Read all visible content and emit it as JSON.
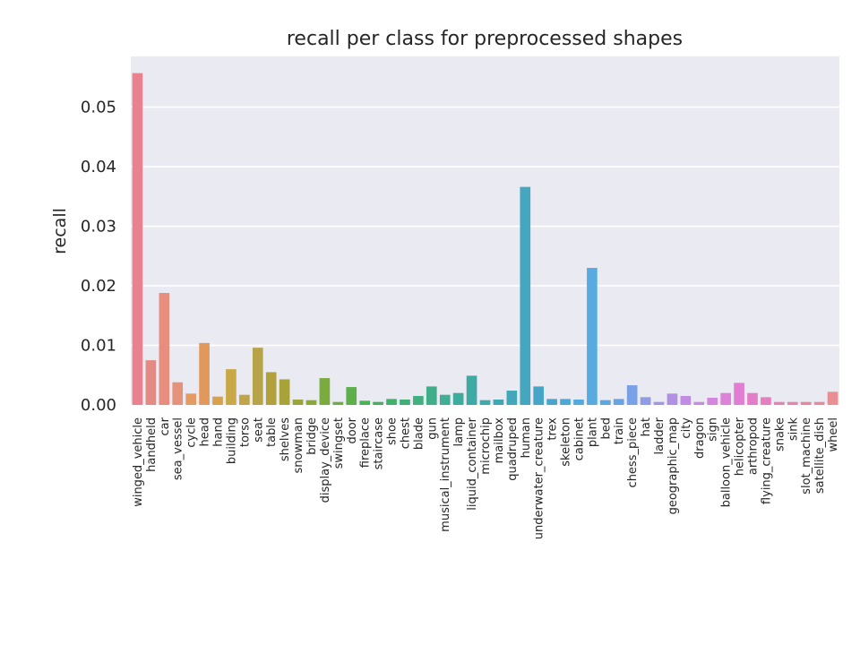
{
  "chart_data": {
    "type": "bar",
    "title": "recall per class for preprocessed shapes",
    "xlabel": "",
    "ylabel": "recall",
    "ylim": [
      0,
      0.0585
    ],
    "yticks": [
      "0.00",
      "0.01",
      "0.02",
      "0.03",
      "0.04",
      "0.05"
    ],
    "grid": true,
    "categories": [
      "winged_vehicle",
      "handheld",
      "car",
      "sea_vessel",
      "cycle",
      "head",
      "hand",
      "building",
      "torso",
      "seat",
      "table",
      "shelves",
      "snowman",
      "bridge",
      "display_device",
      "swingset",
      "door",
      "fireplace",
      "staircase",
      "shoe",
      "chest",
      "blade",
      "gun",
      "musical_instrument",
      "lamp",
      "liquid_container",
      "microchip",
      "mailbox",
      "quadruped",
      "human",
      "underwater_creature",
      "trex",
      "skeleton",
      "cabinet",
      "plant",
      "bed",
      "train",
      "chess_piece",
      "hat",
      "ladder",
      "geographic_map",
      "city",
      "dragon",
      "sign",
      "balloon_vehicle",
      "helicopter",
      "arthropod",
      "flying_creature",
      "snake",
      "sink",
      "slot_machine",
      "satellite_dish",
      "wheel"
    ],
    "values": [
      0.0557,
      0.0075,
      0.0188,
      0.0038,
      0.0019,
      0.0104,
      0.0014,
      0.006,
      0.0017,
      0.0096,
      0.0055,
      0.0043,
      0.0009,
      0.0008,
      0.0045,
      0.0005,
      0.003,
      0.0007,
      0.0005,
      0.001,
      0.0009,
      0.0015,
      0.0031,
      0.0017,
      0.002,
      0.0049,
      0.0008,
      0.0009,
      0.0024,
      0.0366,
      0.0031,
      0.001,
      0.001,
      0.0009,
      0.023,
      0.0008,
      0.001,
      0.0033,
      0.0013,
      0.0005,
      0.0019,
      0.0015,
      0.0005,
      0.0012,
      0.002,
      0.0037,
      0.002,
      0.0013,
      0.0005,
      0.0005,
      0.0005,
      0.0005,
      0.0022
    ],
    "colors": [
      "#e8828f",
      "#e58a83",
      "#e88e7f",
      "#e5927a",
      "#e39a63",
      "#e0995a",
      "#d6a24e",
      "#c9a848",
      "#bfa546",
      "#b7a449",
      "#b2a03d",
      "#a8a339",
      "#9aa63a",
      "#8ba838",
      "#7aab3d",
      "#6fad43",
      "#5daf4a",
      "#4db055",
      "#45b05f",
      "#40b06a",
      "#3eaf75",
      "#42b080",
      "#41ae8b",
      "#40ad94",
      "#3fab9c",
      "#3eaaa4",
      "#3fa9ab",
      "#40a8b2",
      "#42a7b9",
      "#45a6c0",
      "#47a5c7",
      "#49a5ce",
      "#4da8d5",
      "#52aadb",
      "#57abe0",
      "#5ba8e1",
      "#68a4e3",
      "#7aa0e5",
      "#8f9ce6",
      "#a296e5",
      "#b190e4",
      "#bf8ce2",
      "#c98ae0",
      "#d486dd",
      "#dc82d8",
      "#e17ed3",
      "#e47cc8",
      "#e67fbd",
      "#e681b3",
      "#e684a9",
      "#e7869f",
      "#e8899a",
      "#e88e95"
    ]
  }
}
